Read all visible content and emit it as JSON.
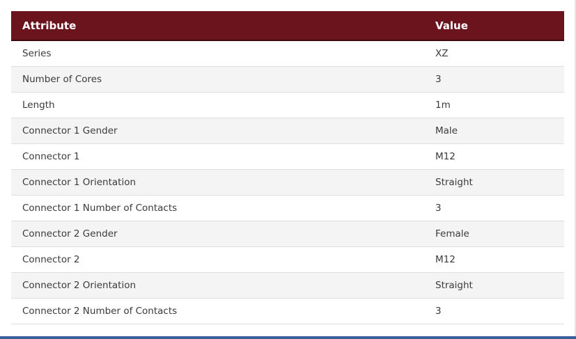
{
  "table": {
    "headers": {
      "attribute": "Attribute",
      "value": "Value"
    },
    "rows": [
      {
        "attribute": "Series",
        "value": "XZ"
      },
      {
        "attribute": "Number of Cores",
        "value": "3"
      },
      {
        "attribute": "Length",
        "value": "1m"
      },
      {
        "attribute": "Connector 1 Gender",
        "value": "Male"
      },
      {
        "attribute": "Connector 1",
        "value": "M12"
      },
      {
        "attribute": "Connector 1 Orientation",
        "value": "Straight"
      },
      {
        "attribute": "Connector 1 Number of Contacts",
        "value": "3"
      },
      {
        "attribute": "Connector 2 Gender",
        "value": "Female"
      },
      {
        "attribute": "Connector 2",
        "value": "M12"
      },
      {
        "attribute": "Connector 2 Orientation",
        "value": "Straight"
      },
      {
        "attribute": "Connector 2 Number of Contacts",
        "value": "3"
      }
    ]
  },
  "colors": {
    "header_bg": "#6b141d",
    "stripe": "#f4f4f4",
    "bottom_bar": "#3a5f9c"
  }
}
